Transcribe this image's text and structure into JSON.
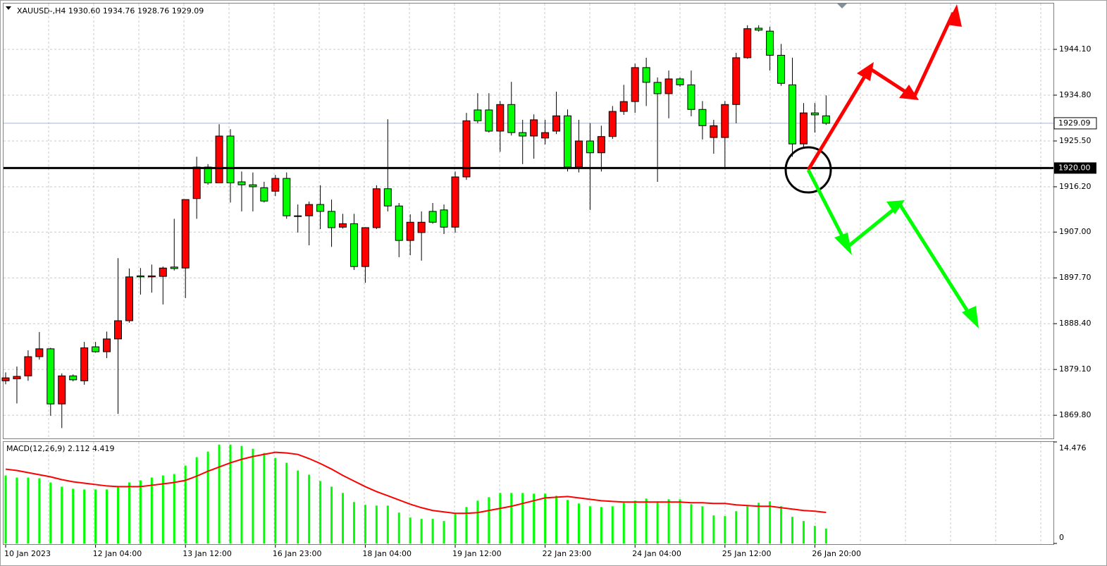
{
  "chart_data": [
    {
      "type": "candlestick",
      "title": "XAUUSD-,H4  1930.60 1934.76 1928.76 1929.09",
      "categories": [
        "10 Jan 2023",
        null,
        null,
        null,
        null,
        null,
        null,
        null,
        "12 Jan 04:00",
        null,
        null,
        null,
        null,
        null,
        null,
        null,
        "13 Jan 12:00",
        null,
        null,
        null,
        null,
        null,
        null,
        null,
        "16 Jan 23:00",
        null,
        null,
        null,
        null,
        null,
        null,
        null,
        "18 Jan 04:00",
        null,
        null,
        null,
        null,
        null,
        null,
        null,
        "19 Jan 12:00",
        null,
        null,
        null,
        null,
        null,
        null,
        null,
        "22 Jan 23:00",
        null,
        null,
        null,
        null,
        null,
        null,
        null,
        "24 Jan 04:00",
        null,
        null,
        null,
        null,
        null,
        null,
        null,
        "25 Jan 12:00",
        null,
        null,
        null,
        null,
        null,
        null,
        null,
        "26 Jan 20:00",
        null
      ],
      "open": [
        1876.8,
        1877.2,
        1877.8,
        1881.7,
        1883.3,
        1872.1,
        1877.8,
        1876.8,
        1883.7,
        1882.7,
        1885.3,
        1889.0,
        1898.1,
        1897.9,
        1898.0,
        1899.9,
        1899.7,
        1913.8,
        1920.2,
        1917.0,
        1926.5,
        1917.2,
        1916.6,
        1916.0,
        1915.3,
        1917.9,
        1910.3,
        1910.3,
        1912.6,
        1911.2,
        1908.0,
        1908.7,
        1900.0,
        1907.9,
        1915.8,
        1912.3,
        1905.3,
        1906.9,
        1911.2,
        1911.5,
        1908.0,
        1918.2,
        1931.8,
        1931.8,
        1927.5,
        1932.9,
        1927.2,
        1926.5,
        1926.1,
        1927.5,
        1930.6,
        1920.2,
        1925.5,
        1923.1,
        1926.4,
        1931.5,
        1933.5,
        1940.4,
        1937.4,
        1935.1,
        1938.1,
        1936.9,
        1931.9,
        1926.2,
        1926.2,
        1932.9,
        1942.4,
        1948.4,
        1947.8,
        1942.9,
        1936.9,
        1924.9,
        1931.2,
        1930.6
      ],
      "high": [
        1878.5,
        1879.7,
        1883.0,
        1886.7,
        1883.5,
        1878.3,
        1878.1,
        1884.7,
        1884.7,
        1886.8,
        1901.7,
        1899.6,
        1899.7,
        1900.4,
        1900.0,
        1909.7,
        1913.6,
        1922.3,
        1920.8,
        1928.9,
        1927.9,
        1919.3,
        1919.1,
        1917.2,
        1918.6,
        1919.1,
        1912.6,
        1913.2,
        1916.5,
        1913.6,
        1910.7,
        1910.7,
        1908.0,
        1916.5,
        1929.9,
        1912.9,
        1910.6,
        1911.2,
        1912.9,
        1912.6,
        1919.3,
        1931.2,
        1935.2,
        1935.2,
        1933.6,
        1937.5,
        1929.8,
        1930.9,
        1929.8,
        1935.5,
        1931.9,
        1929.8,
        1929.1,
        1928.6,
        1932.6,
        1936.9,
        1941.2,
        1942.4,
        1938.4,
        1939.8,
        1938.4,
        1939.8,
        1933.6,
        1929.8,
        1933.6,
        1943.4,
        1949.0,
        1949.0,
        1948.7,
        1945.2,
        1942.4,
        1933.2,
        1933.2,
        1934.76
      ],
      "low": [
        1876.1,
        1872.2,
        1876.8,
        1881.1,
        1869.7,
        1867.2,
        1876.7,
        1876.0,
        1882.5,
        1881.4,
        1870.1,
        1888.6,
        1894.3,
        1894.7,
        1892.3,
        1899.2,
        1893.6,
        1909.7,
        1916.6,
        1916.9,
        1913.0,
        1911.2,
        1911.2,
        1913.0,
        1914.3,
        1909.7,
        1906.9,
        1904.3,
        1907.6,
        1904.0,
        1907.7,
        1899.3,
        1896.7,
        1907.6,
        1911.2,
        1901.9,
        1902.3,
        1901.2,
        1908.7,
        1906.6,
        1906.9,
        1917.6,
        1929.1,
        1927.2,
        1923.3,
        1926.6,
        1920.8,
        1921.9,
        1924.8,
        1926.9,
        1919.3,
        1919.1,
        1911.5,
        1919.3,
        1925.9,
        1930.8,
        1931.2,
        1932.6,
        1917.2,
        1930.1,
        1936.5,
        1930.5,
        1925.8,
        1922.9,
        1920.1,
        1929.1,
        1942.2,
        1947.7,
        1939.8,
        1936.7,
        1922.3,
        1924.1,
        1927.2,
        1928.76
      ],
      "close": [
        1877.4,
        1877.7,
        1881.7,
        1883.3,
        1872.1,
        1877.8,
        1877.0,
        1883.5,
        1882.7,
        1885.3,
        1889.0,
        1897.9,
        1897.9,
        1898.1,
        1899.7,
        1899.6,
        1913.6,
        1920.2,
        1917.0,
        1926.5,
        1917.0,
        1916.6,
        1916.2,
        1913.3,
        1917.9,
        1910.3,
        1910.2,
        1912.6,
        1911.2,
        1907.9,
        1908.7,
        1900.0,
        1907.9,
        1915.8,
        1912.3,
        1905.3,
        1909.0,
        1909.0,
        1909.0,
        1908.0,
        1918.2,
        1929.6,
        1929.6,
        1927.5,
        1932.9,
        1927.2,
        1926.5,
        1929.8,
        1927.2,
        1930.6,
        1920.2,
        1925.5,
        1923.1,
        1926.4,
        1931.5,
        1933.5,
        1940.4,
        1937.4,
        1935.1,
        1938.1,
        1936.9,
        1931.9,
        1928.6,
        1928.6,
        1932.9,
        1942.4,
        1948.3,
        1948.0,
        1942.9,
        1937.2,
        1924.9,
        1931.2,
        1930.8,
        1929.09
      ],
      "up_color": "#ff0000",
      "down_color": "#00ff00",
      "ylim": [
        1865.1,
        1953.55
      ],
      "yticks": [
        {
          "value": 1944.1,
          "label": "1944.10"
        },
        {
          "value": 1934.8,
          "label": "1934.80"
        },
        {
          "value": 1925.5,
          "label": "1925.50"
        },
        {
          "value": 1916.2,
          "label": "1916.20"
        },
        {
          "value": 1907,
          "label": "1907.00"
        },
        {
          "value": 1897.7,
          "label": "1897.70"
        },
        {
          "value": 1888.4,
          "label": "1888.40"
        },
        {
          "value": 1879.1,
          "label": "1879.10"
        },
        {
          "value": 1869.8,
          "label": "1869.80"
        }
      ],
      "grid": true,
      "price_line": {
        "value": 1929.09,
        "label": "1929.09",
        "color": "#a8b4cc"
      },
      "level_line": {
        "value": 1920,
        "label": "1920.00",
        "color": "#000000"
      }
    },
    {
      "type": "macd",
      "title": "MACD(12,26,9) 2.112 4.419",
      "series": [
        {
          "type": "bar",
          "color": "#00ff00",
          "values": [
            9.7,
            9.4,
            9.4,
            9.3,
            8.7,
            8.1,
            7.8,
            7.7,
            7.7,
            7.7,
            8.2,
            8.7,
            9.0,
            9.4,
            9.7,
            9.9,
            11.1,
            12.3,
            13.1,
            14.1,
            14.1,
            13.9,
            13.5,
            12.9,
            12.2,
            11.5,
            10.4,
            9.8,
            8.9,
            8.1,
            7.2,
            5.9,
            5.5,
            5.4,
            5.4,
            4.4,
            3.7,
            3.5,
            3.5,
            3.2,
            4.3,
            5.2,
            6.1,
            6.6,
            7.2,
            7.2,
            7.2,
            7.1,
            7.1,
            6.8,
            6.2,
            5.7,
            5.3,
            5.2,
            5.3,
            5.8,
            6.1,
            6.4,
            6.0,
            6.3,
            6.3,
            5.6,
            5.3,
            4.0,
            3.9,
            4.6,
            5.3,
            5.8,
            6.0,
            5.3,
            3.8,
            3.2,
            2.5,
            2.112
          ]
        },
        {
          "type": "line",
          "color": "#ff0000",
          "values": [
            10.6,
            10.4,
            10.1,
            9.8,
            9.5,
            9.1,
            8.8,
            8.6,
            8.4,
            8.2,
            8.1,
            8.1,
            8.1,
            8.3,
            8.5,
            8.7,
            9.0,
            9.6,
            10.3,
            10.9,
            11.5,
            12.0,
            12.4,
            12.7,
            13.0,
            12.9,
            12.7,
            12.1,
            11.4,
            10.6,
            9.7,
            8.9,
            8.1,
            7.4,
            6.8,
            6.2,
            5.6,
            5.1,
            4.7,
            4.5,
            4.3,
            4.3,
            4.4,
            4.7,
            5.0,
            5.3,
            5.7,
            6.1,
            6.5,
            6.6,
            6.7,
            6.5,
            6.3,
            6.1,
            6.0,
            5.9,
            5.9,
            5.9,
            5.9,
            5.9,
            5.9,
            5.8,
            5.8,
            5.7,
            5.7,
            5.5,
            5.4,
            5.3,
            5.3,
            5.1,
            4.9,
            4.7,
            4.6,
            4.419
          ]
        }
      ],
      "ylim": [
        0,
        14.476
      ],
      "yticks": [
        14.476,
        0
      ]
    }
  ]
}
